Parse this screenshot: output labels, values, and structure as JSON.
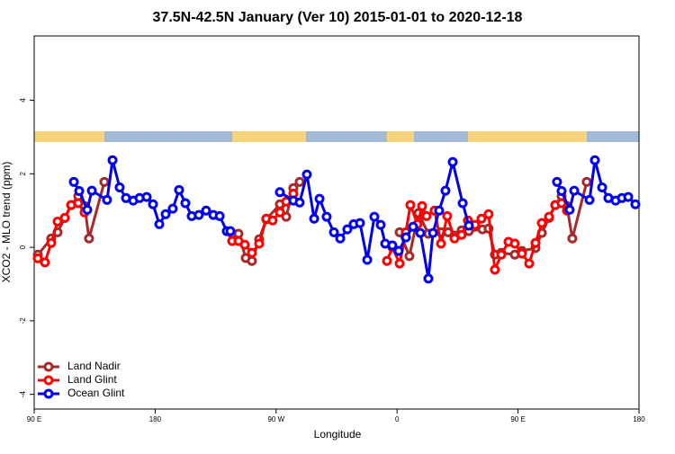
{
  "chart_data": {
    "type": "line",
    "title": "37.5N-42.5N January (Ver 10)   2015-01-01 to 2020-12-18",
    "x_label": "Longitude",
    "y_label": "XCO2 - MLO trend (ppm)",
    "xlim": [
      90,
      540
    ],
    "ylim": [
      -4.4,
      5.75
    ],
    "xticks": [
      {
        "value": 90,
        "label": "90 E"
      },
      {
        "value": 180,
        "label": "180"
      },
      {
        "value": 270,
        "label": "90 W"
      },
      {
        "value": 360,
        "label": "0"
      },
      {
        "value": 450,
        "label": "90 E"
      },
      {
        "value": 540,
        "label": "180"
      }
    ],
    "yticks": [
      -4,
      -2,
      0,
      2,
      4
    ],
    "legend": "bottom-left",
    "series": [
      {
        "name": "Land Nadir",
        "color": "#a52a2a",
        "x": [
          92.7,
          102.7,
          107.4,
          112.8,
          117.5,
          122.8,
          127.5,
          130.8,
          142.2,
          190,
          237.3,
          242,
          247.4,
          252,
          257.4,
          262.7,
          272.8,
          277.5,
          282.8,
          287.5,
          325,
          361.9,
          369.2,
          375.9,
          383.3,
          392.7,
          398,
          402.7,
          408,
          413.4,
          423.5,
          428.1,
          432.8,
          437.5,
          447.6,
          452.9,
          463,
          467.7,
          473.1,
          477.7,
          482.4,
          486.4,
          490.4,
          501.1
        ],
        "values": [
          -0.2,
          0.24,
          0.41,
          0.8,
          1.15,
          1.39,
          1.12,
          0.24,
          1.78,
          null,
          0.37,
          0.37,
          -0.29,
          -0.37,
          0.22,
          0.76,
          1.17,
          0.83,
          1.61,
          1.78,
          null,
          0.41,
          -0.24,
          0.93,
          0.37,
          0.41,
          0.41,
          0.32,
          0.46,
          0.44,
          0.49,
          0.51,
          -0.2,
          -0.15,
          -0.2,
          -0.1,
          -0.02,
          0.39,
          0.8,
          1.15,
          1.39,
          1.12,
          0.24,
          1.78
        ]
      },
      {
        "name": "Land Glint",
        "color": "#ff0000",
        "x": [
          92.7,
          98,
          102.7,
          107.4,
          112.8,
          117.5,
          122.8,
          127.5,
          182,
          237.3,
          242,
          246.7,
          252,
          257.4,
          262.7,
          267.4,
          272.8,
          277.5,
          282.8,
          318,
          352.5,
          356.5,
          361.9,
          366.5,
          369.9,
          375.2,
          378.6,
          381.9,
          387.9,
          392.7,
          397.3,
          402.7,
          408,
          412.7,
          418.1,
          422.8,
          428.1,
          432.8,
          437.5,
          442.9,
          447.6,
          452.9,
          458.3,
          463,
          467.7,
          473.1,
          477.7,
          482.4,
          486.4
        ],
        "values": [
          -0.3,
          -0.41,
          0.12,
          0.7,
          0.8,
          1.15,
          1.2,
          0.95,
          null,
          0.17,
          0.17,
          0.07,
          -0.15,
          0.1,
          0.78,
          0.73,
          0.95,
          1.24,
          1.46,
          null,
          -0.37,
          0,
          -0.44,
          0.41,
          1.15,
          0.63,
          1.12,
          0.85,
          1.0,
          0.1,
          0.85,
          0.24,
          0.34,
          0.73,
          0.61,
          0.78,
          0.9,
          -0.61,
          -0.2,
          0.15,
          0.1,
          -0.17,
          -0.44,
          0.12,
          0.66,
          0.83,
          1.15,
          1.2,
          1.0
        ]
      },
      {
        "name": "Ocean Glint",
        "color": "#0000ee",
        "x": [
          119.5,
          123.5,
          129.5,
          132.9,
          144.2,
          148.3,
          153.6,
          158.3,
          163.7,
          168.4,
          173.7,
          178.4,
          183.1,
          187.8,
          193.1,
          197.8,
          202.5,
          207.2,
          212.5,
          217.9,
          223.3,
          228,
          233.3,
          236,
          254,
          272.8,
          282.9,
          287.5,
          292.9,
          298.3,
          302.3,
          307.6,
          313,
          317.7,
          323,
          327.7,
          332.4,
          337.8,
          343.1,
          347.8,
          351.2,
          356.5,
          361.2,
          366.6,
          371.9,
          377.3,
          383.3,
          386.7,
          391.3,
          396,
          401.4,
          408.8,
          413.4,
          446,
          479,
          482.4,
          488.4,
          491.8,
          503.2,
          507.2,
          512.6,
          517.2,
          522.6,
          527.3,
          532,
          537.3
        ],
        "values": [
          1.78,
          1.53,
          1.02,
          1.54,
          1.29,
          2.37,
          1.63,
          1.34,
          1.27,
          1.34,
          1.37,
          1.17,
          0.63,
          0.9,
          1.05,
          1.56,
          1.2,
          0.85,
          0.88,
          1.0,
          0.88,
          0.85,
          0.44,
          0.44,
          null,
          1.5,
          1.27,
          1.22,
          1.98,
          0.78,
          1.32,
          0.83,
          0.41,
          0.24,
          0.49,
          0.63,
          0.66,
          -0.34,
          0.83,
          0.61,
          0.1,
          0.05,
          -0.1,
          0.27,
          0.56,
          0.39,
          -0.85,
          0.39,
          1.0,
          1.54,
          2.32,
          1.2,
          0.59,
          null,
          1.78,
          1.53,
          1.02,
          1.54,
          1.29,
          2.37,
          1.63,
          1.34,
          1.27,
          1.34,
          1.37,
          1.17
        ]
      }
    ]
  }
}
